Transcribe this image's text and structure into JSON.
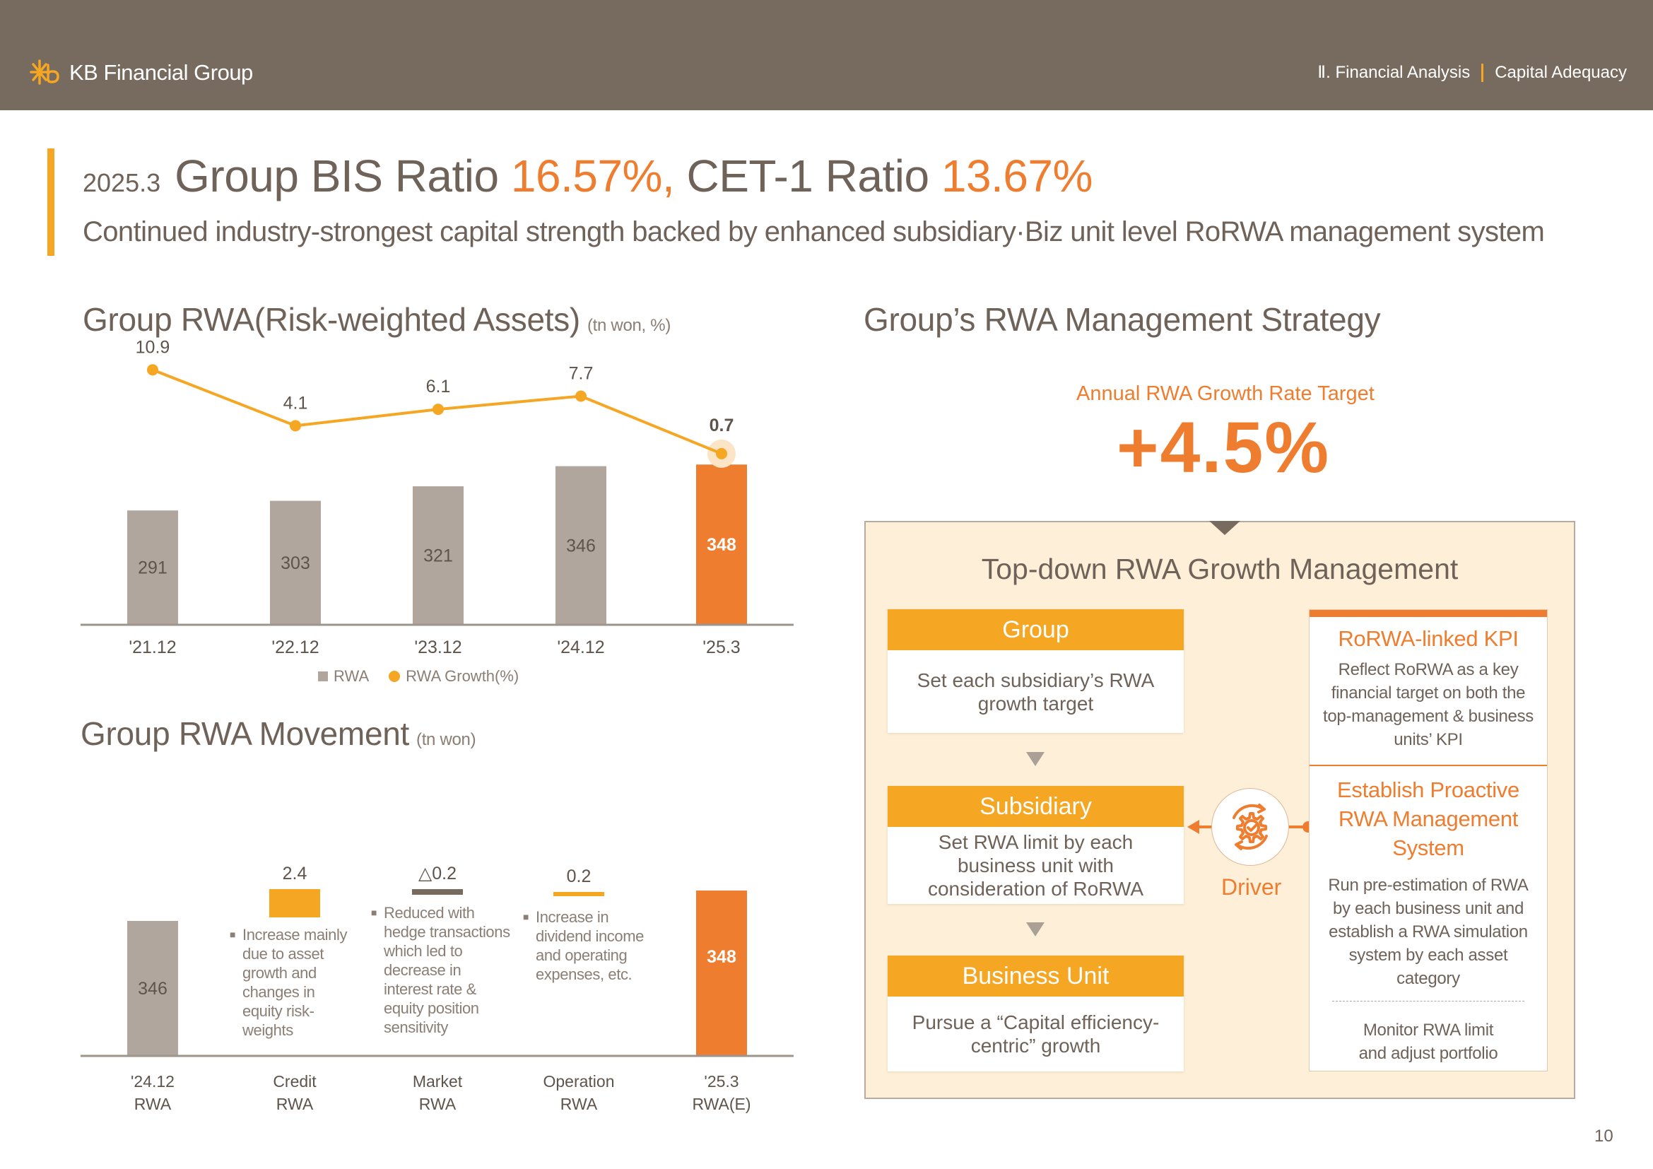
{
  "header": {
    "logo_text": "KB Financial Group",
    "breadcrumb": [
      "Ⅱ. Financial Analysis",
      "Capital Adequacy"
    ]
  },
  "title": {
    "date": "2025.3",
    "prefix": "Group BIS Ratio ",
    "bis_value": "16.57%,",
    "middle": " CET-1 Ratio ",
    "cet1_value": "13.67%",
    "subtitle": "Continued industry-strongest capital strength backed by enhanced subsidiary·Biz unit level RoRWA management system"
  },
  "rwa_section": {
    "title": "Group RWA(Risk-weighted Assets)",
    "unit": "(tn won, %)",
    "legend": [
      "RWA",
      "RWA Growth(%)"
    ]
  },
  "movement_section": {
    "title": "Group RWA Movement",
    "unit": "(tn won)",
    "notes": [
      [
        "Increase mainly",
        "due to asset",
        "growth and",
        "changes in",
        "equity risk-",
        "weights"
      ],
      [
        "Reduced with",
        "hedge transactions",
        "which led to",
        "decrease in",
        "interest rate &",
        "equity position",
        "sensitivity"
      ],
      [
        "Increase in",
        "dividend income",
        "and operating",
        "expenses, etc."
      ]
    ]
  },
  "chart_data": [
    {
      "type": "bar",
      "title": "Group RWA(Risk-weighted Assets)",
      "unit": "tn won, %",
      "categories": [
        "'21.12",
        "'22.12",
        "'23.12",
        "'24.12",
        "'25.3"
      ],
      "series": [
        {
          "name": "RWA",
          "kind": "bar",
          "values": [
            291,
            303,
            321,
            346,
            348
          ],
          "color": "#b0a69d",
          "highlight_color": "#ef7d2f"
        },
        {
          "name": "RWA Growth(%)",
          "kind": "line",
          "values": [
            10.9,
            4.1,
            6.1,
            7.7,
            0.7
          ],
          "color": "#f5a623"
        }
      ],
      "legend": "bottom-center"
    },
    {
      "type": "bar",
      "subtype": "waterfall",
      "title": "Group RWA Movement",
      "unit": "tn won",
      "categories": [
        "'24.12 RWA",
        "Credit RWA",
        "Market RWA",
        "Operation RWA",
        "'25.3 RWA(E)"
      ],
      "category_lines": [
        [
          "'24.12",
          "RWA"
        ],
        [
          "Credit",
          "RWA"
        ],
        [
          "Market",
          "RWA"
        ],
        [
          "Operation",
          "RWA"
        ],
        [
          "'25.3",
          "RWA(E)"
        ]
      ],
      "values": [
        346,
        2.4,
        -0.2,
        0.2,
        348
      ],
      "labels": [
        "346",
        "2.4",
        "△0.2",
        "0.2",
        "348"
      ],
      "colors": [
        "#b0a69d",
        "#f5a623",
        "#776a5f",
        "#f5a623",
        "#ef7d2f"
      ]
    }
  ],
  "strategy": {
    "title": "Group’s RWA Management Strategy",
    "target_label": "Annual RWA Growth Rate Target",
    "target_value": "+4.5%",
    "box_title": "Top-down RWA Growth Management",
    "tiers": [
      {
        "head": "Group",
        "body": "Set each subsidiary’s RWA growth target"
      },
      {
        "head": "Subsidiary",
        "body": "Set RWA limit by each business unit with consideration of RoRWA"
      },
      {
        "head": "Business Unit",
        "body": "Pursue a “Capital efficiency-centric” growth"
      }
    ],
    "driver_label": "Driver",
    "kpi": {
      "head": "RoRWA-linked KPI",
      "body": "Reflect RoRWA as a key financial target on both the top-management & business units’ KPI"
    },
    "proactive": {
      "head": "Establish Proactive RWA Management System",
      "body1": "Run pre-estimation of RWA by each business unit and establish a RWA simulation system by each asset category",
      "body2": "Monitor RWA limit and adjust portfolio"
    }
  },
  "page_number": "10"
}
